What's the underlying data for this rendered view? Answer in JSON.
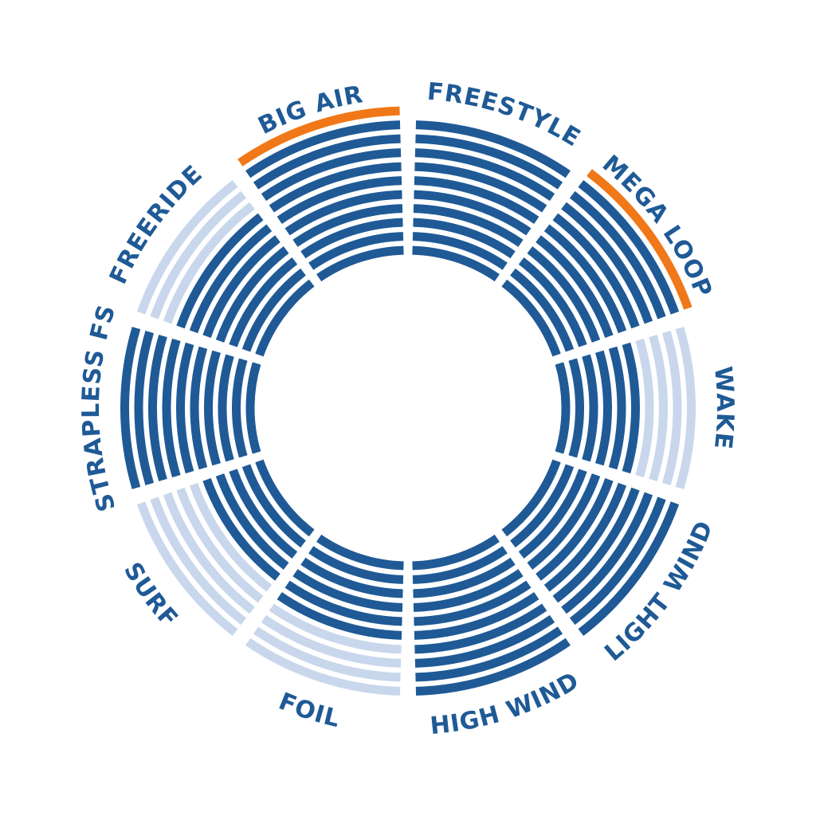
{
  "chart_data": {
    "type": "radial-bar",
    "max_value": 10,
    "categories": [
      "FREESTYLE",
      "MEGA LOOP",
      "WAKE",
      "LIGHT WIND",
      "HIGH WIND",
      "FOIL",
      "SURF",
      "STRAPLESS FS",
      "FREERIDE",
      "BIG AIR"
    ],
    "values": [
      10,
      11,
      6,
      10,
      10,
      6,
      5,
      10,
      7,
      11
    ],
    "colors": {
      "filled": "#1f5a96",
      "empty": "#c9d7ec",
      "highlight": "#f07818",
      "label": "#1f5a96"
    }
  }
}
